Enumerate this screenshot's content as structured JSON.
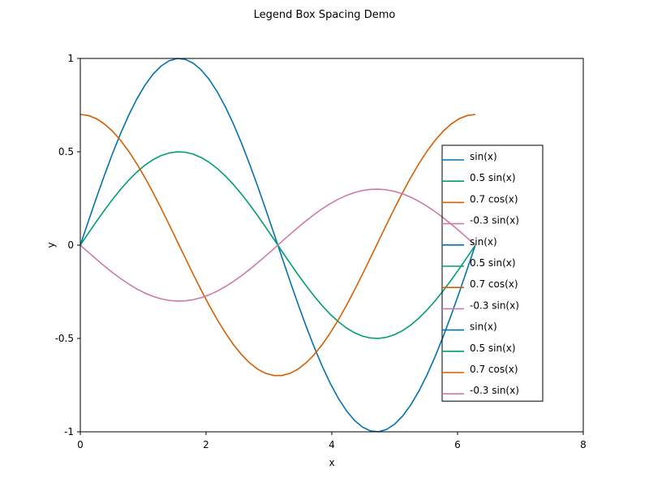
{
  "chart_data": {
    "type": "line",
    "title": "Legend Box Spacing Demo",
    "xlabel": "x",
    "ylabel": "y",
    "xlim": [
      0,
      8
    ],
    "ylim": [
      -1,
      1
    ],
    "x_ticks": [
      0,
      2,
      4,
      6,
      8
    ],
    "x_tick_labels": [
      "0",
      "2",
      "4",
      "6",
      "8"
    ],
    "y_ticks": [
      -1,
      -0.5,
      0,
      0.5,
      1
    ],
    "y_tick_labels": [
      "-1",
      "-0.5",
      "0",
      "0.5",
      "1"
    ],
    "grid": false,
    "x_range": [
      0,
      6.2832
    ],
    "samples": 50,
    "series": [
      {
        "name": "sin(x)",
        "formula": "sin",
        "amplitude": 1.0,
        "color": "#0072B2"
      },
      {
        "name": "0.5 sin(x)",
        "formula": "sin",
        "amplitude": 0.5,
        "color": "#009E73"
      },
      {
        "name": "0.7 cos(x)",
        "formula": "cos",
        "amplitude": 0.7,
        "color": "#D55E00"
      },
      {
        "name": "-0.3 sin(x)",
        "formula": "sin",
        "amplitude": -0.3,
        "color": "#CC79A7"
      }
    ],
    "legend": {
      "placement": "right",
      "entries": [
        {
          "label": "sin(x)",
          "color": "#0072B2"
        },
        {
          "label": "0.5 sin(x)",
          "color": "#009E73"
        },
        {
          "label": "0.7 cos(x)",
          "color": "#D55E00"
        },
        {
          "label": "-0.3 sin(x)",
          "color": "#CC79A7"
        },
        {
          "label": "sin(x)",
          "color": "#0072B2"
        },
        {
          "label": "0.5 sin(x)",
          "color": "#009E73"
        },
        {
          "label": "0.7 cos(x)",
          "color": "#D55E00"
        },
        {
          "label": "-0.3 sin(x)",
          "color": "#CC79A7"
        },
        {
          "label": "sin(x)",
          "color": "#0072B2"
        },
        {
          "label": "0.5 sin(x)",
          "color": "#009E73"
        },
        {
          "label": "0.7 cos(x)",
          "color": "#D55E00"
        },
        {
          "label": "-0.3 sin(x)",
          "color": "#CC79A7"
        }
      ]
    }
  }
}
